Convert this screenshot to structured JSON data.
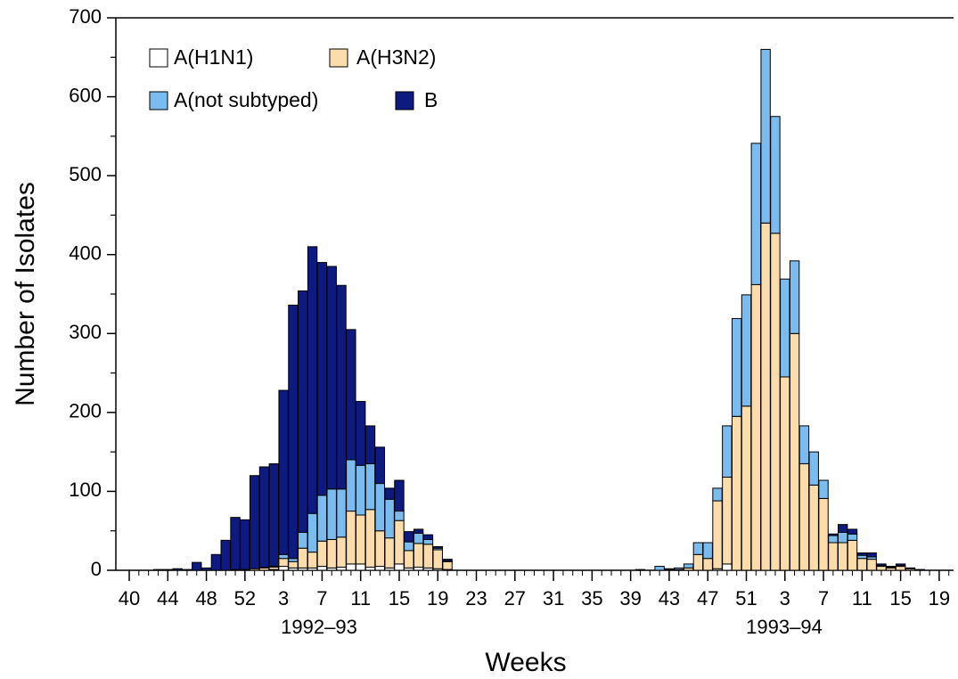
{
  "chart_data": {
    "type": "stacked_bar",
    "x_label": "Weeks",
    "y_label": "Number of Isolates",
    "season_labels": [
      "1992–93",
      "1993–94"
    ],
    "categories": [
      "40",
      null,
      null,
      null,
      "44",
      null,
      null,
      null,
      "48",
      null,
      null,
      null,
      "52",
      null,
      null,
      null,
      "3",
      null,
      null,
      null,
      "7",
      null,
      null,
      null,
      "11",
      null,
      null,
      null,
      "15",
      null,
      null,
      null,
      "19",
      null,
      null,
      null,
      "23",
      null,
      null,
      null,
      "27",
      null,
      null,
      null,
      "31",
      null,
      null,
      null,
      "35",
      null,
      null,
      null,
      "39",
      null,
      null,
      null,
      "43",
      null,
      null,
      null,
      "47",
      null,
      null,
      null,
      "51",
      null,
      null,
      null,
      "3",
      null,
      null,
      null,
      "7",
      null,
      null,
      null,
      "11",
      null,
      null,
      null,
      "15",
      null,
      null,
      null,
      "19",
      null
    ],
    "ylim": [
      0,
      700
    ],
    "yticks": [
      0,
      100,
      200,
      300,
      400,
      500,
      600,
      700
    ],
    "yminorticks": [
      50,
      150,
      250,
      350,
      450,
      550,
      650
    ],
    "series": [
      {
        "name": "A(H1N1)",
        "color": "#ffffff",
        "values": [
          0,
          0,
          0,
          0,
          0,
          0,
          0,
          0,
          0,
          0,
          0,
          0,
          0,
          0,
          0,
          1,
          5,
          3,
          3,
          3,
          5,
          3,
          4,
          8,
          8,
          4,
          5,
          3,
          8,
          3,
          4,
          3,
          2,
          1,
          0,
          0,
          0,
          0,
          0,
          0,
          0,
          0,
          0,
          0,
          0,
          0,
          0,
          0,
          0,
          0,
          0,
          0,
          0,
          0,
          0,
          0,
          0,
          0,
          0,
          0,
          0,
          2,
          8,
          0,
          0,
          0,
          0,
          0,
          0,
          0,
          0,
          0,
          0,
          0,
          0,
          0,
          0,
          0,
          0,
          0,
          0,
          0,
          0,
          0,
          0,
          0
        ]
      },
      {
        "name": "A(H3N2)",
        "color": "#fcdcaa",
        "values": [
          0,
          0,
          0,
          0,
          0,
          0,
          0,
          0,
          0,
          0,
          0,
          1,
          1,
          2,
          3,
          3,
          10,
          8,
          25,
          20,
          32,
          36,
          38,
          67,
          62,
          73,
          45,
          38,
          55,
          22,
          30,
          30,
          24,
          10,
          0,
          0,
          0,
          0,
          0,
          0,
          0,
          0,
          0,
          0,
          0,
          0,
          0,
          0,
          0,
          0,
          0,
          0,
          0,
          0,
          0,
          0,
          1,
          1,
          3,
          20,
          15,
          86,
          110,
          195,
          208,
          362,
          440,
          427,
          245,
          300,
          135,
          108,
          91,
          35,
          35,
          38,
          15,
          14,
          5,
          3,
          5,
          2,
          1,
          0,
          0,
          0
        ]
      },
      {
        "name": "A(not subtyped)",
        "color": "#7bbcf0",
        "values": [
          0,
          0,
          0,
          0,
          0,
          0,
          0,
          0,
          0,
          0,
          0,
          0,
          0,
          0,
          1,
          1,
          5,
          4,
          20,
          49,
          58,
          64,
          61,
          65,
          63,
          58,
          60,
          49,
          12,
          11,
          13,
          6,
          2,
          1,
          0,
          0,
          0,
          0,
          0,
          0,
          0,
          0,
          0,
          0,
          0,
          0,
          0,
          0,
          0,
          0,
          0,
          0,
          0,
          1,
          0,
          5,
          1,
          2,
          5,
          15,
          20,
          16,
          65,
          124,
          141,
          179,
          220,
          148,
          124,
          92,
          48,
          42,
          23,
          9,
          13,
          8,
          4,
          3,
          1,
          1,
          1,
          1,
          0,
          0,
          0,
          0
        ]
      },
      {
        "name": "B",
        "color": "#0d1a80",
        "values": [
          0,
          0,
          0,
          1,
          1,
          2,
          1,
          10,
          3,
          20,
          38,
          66,
          63,
          118,
          127,
          130,
          208,
          321,
          306,
          338,
          295,
          282,
          258,
          165,
          81,
          48,
          46,
          14,
          39,
          13,
          5,
          6,
          2,
          2,
          0,
          0,
          0,
          0,
          0,
          0,
          0,
          0,
          0,
          0,
          0,
          0,
          0,
          0,
          0,
          0,
          0,
          0,
          0,
          0,
          0,
          0,
          0,
          0,
          0,
          0,
          0,
          0,
          0,
          0,
          0,
          0,
          0,
          0,
          0,
          0,
          0,
          0,
          0,
          2,
          10,
          6,
          3,
          5,
          2,
          1,
          2,
          0,
          0,
          0,
          0,
          0
        ]
      }
    ]
  }
}
